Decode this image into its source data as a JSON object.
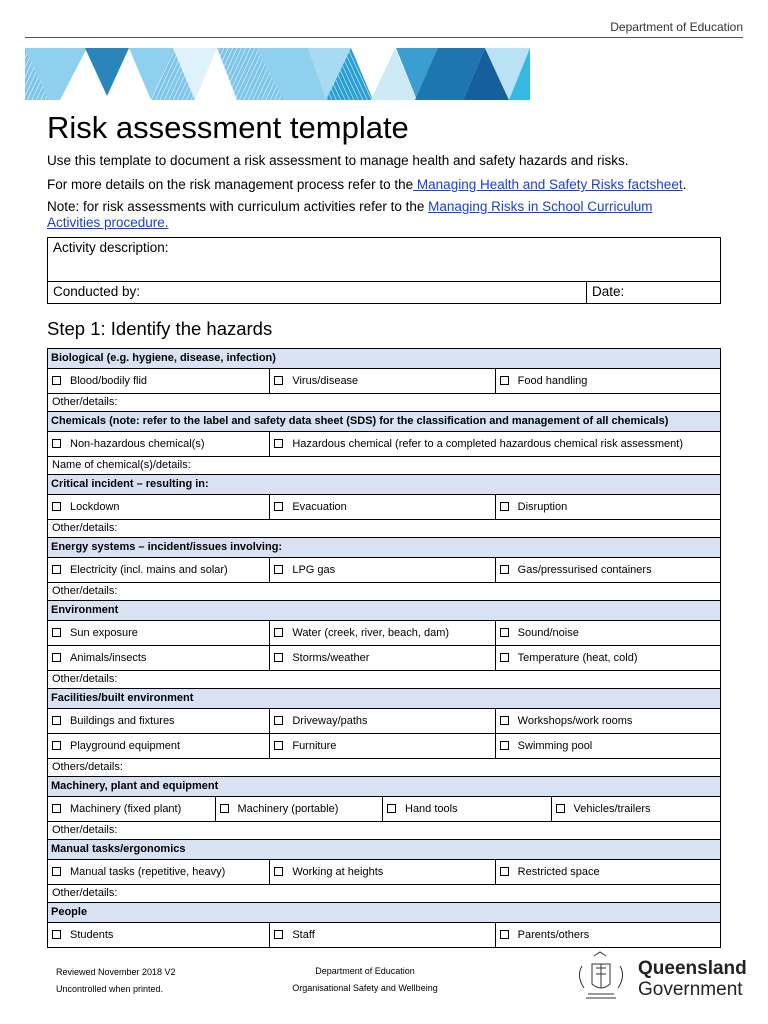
{
  "header": {
    "department": "Department of Education"
  },
  "title": "Risk assessment template",
  "intro": {
    "line1": "Use this template to document a risk assessment to manage health and safety hazards and risks.",
    "line2_prefix": "For more details on the risk management process refer to the",
    "line2_link": " Managing Health and Safety Risks factsheet",
    "line2_suffix": ".",
    "line3_prefix": "Note: for risk assessments with curriculum activities refer to the ",
    "line3_link": "Managing Risks in School Curriculum Activities procedure."
  },
  "activity": {
    "description_label": "Activity description:",
    "conducted_label": "Conducted by:",
    "date_label": "Date:"
  },
  "step1": {
    "title": "Step 1: Identify the hazards"
  },
  "sections": [
    {
      "header": "Biological (e.g. hygiene, disease, infection)",
      "rows": [
        [
          "Blood/bodily flid",
          "Virus/disease",
          "Food handling"
        ]
      ],
      "details": "Other/details:"
    },
    {
      "header": "Chemicals (note: refer to the label and safety data sheet (SDS) for the classification and management of all chemicals)",
      "rows": [
        [
          "Non-hazardous chemical(s)",
          "Hazardous chemical (refer to a completed hazardous chemical risk assessment)"
        ]
      ],
      "details": "Name of chemical(s)/details:"
    },
    {
      "header": "Critical incident – resulting in:",
      "rows": [
        [
          "Lockdown",
          "Evacuation",
          "Disruption"
        ]
      ],
      "details": "Other/details:"
    },
    {
      "header": "Energy systems – incident/issues involving:",
      "rows": [
        [
          "Electricity (incl. mains and solar)",
          "LPG gas",
          "Gas/pressurised containers"
        ]
      ],
      "details": "Other/details:"
    },
    {
      "header": "Environment",
      "rows": [
        [
          "Sun exposure",
          "Water (creek, river, beach, dam)",
          "Sound/noise"
        ],
        [
          "Animals/insects",
          "Storms/weather",
          "Temperature (heat, cold)"
        ]
      ],
      "details": "Other/details:"
    },
    {
      "header": "Facilities/built environment",
      "rows": [
        [
          "Buildings and fixtures",
          "Driveway/paths",
          "Workshops/work rooms"
        ],
        [
          "Playground equipment",
          "Furniture",
          "Swimming pool"
        ]
      ],
      "details": "Others/details:"
    },
    {
      "header": "Machinery, plant and equipment",
      "rows": [
        [
          "Machinery (fixed plant)",
          "Machinery (portable)",
          "Hand tools",
          "Vehicles/trailers"
        ]
      ],
      "details": "Other/details:"
    },
    {
      "header": "Manual tasks/ergonomics",
      "rows": [
        [
          "Manual tasks (repetitive, heavy)",
          "Working at heights",
          "Restricted space"
        ]
      ],
      "details": "Other/details:"
    },
    {
      "header": "People",
      "rows": [
        [
          "Students",
          "Staff",
          "Parents/others"
        ]
      ]
    }
  ],
  "footer": {
    "reviewed": "Reviewed November 2018  V2",
    "uncontrolled": "Uncontrolled when printed.",
    "dept": "Department of Education",
    "unit": "Organisational Safety and Wellbeing",
    "logo_line1": "Queensland",
    "logo_line2": "Government"
  },
  "colors": {
    "section_header_bg": "#d9e2f3",
    "link": "#1a3fd6"
  }
}
